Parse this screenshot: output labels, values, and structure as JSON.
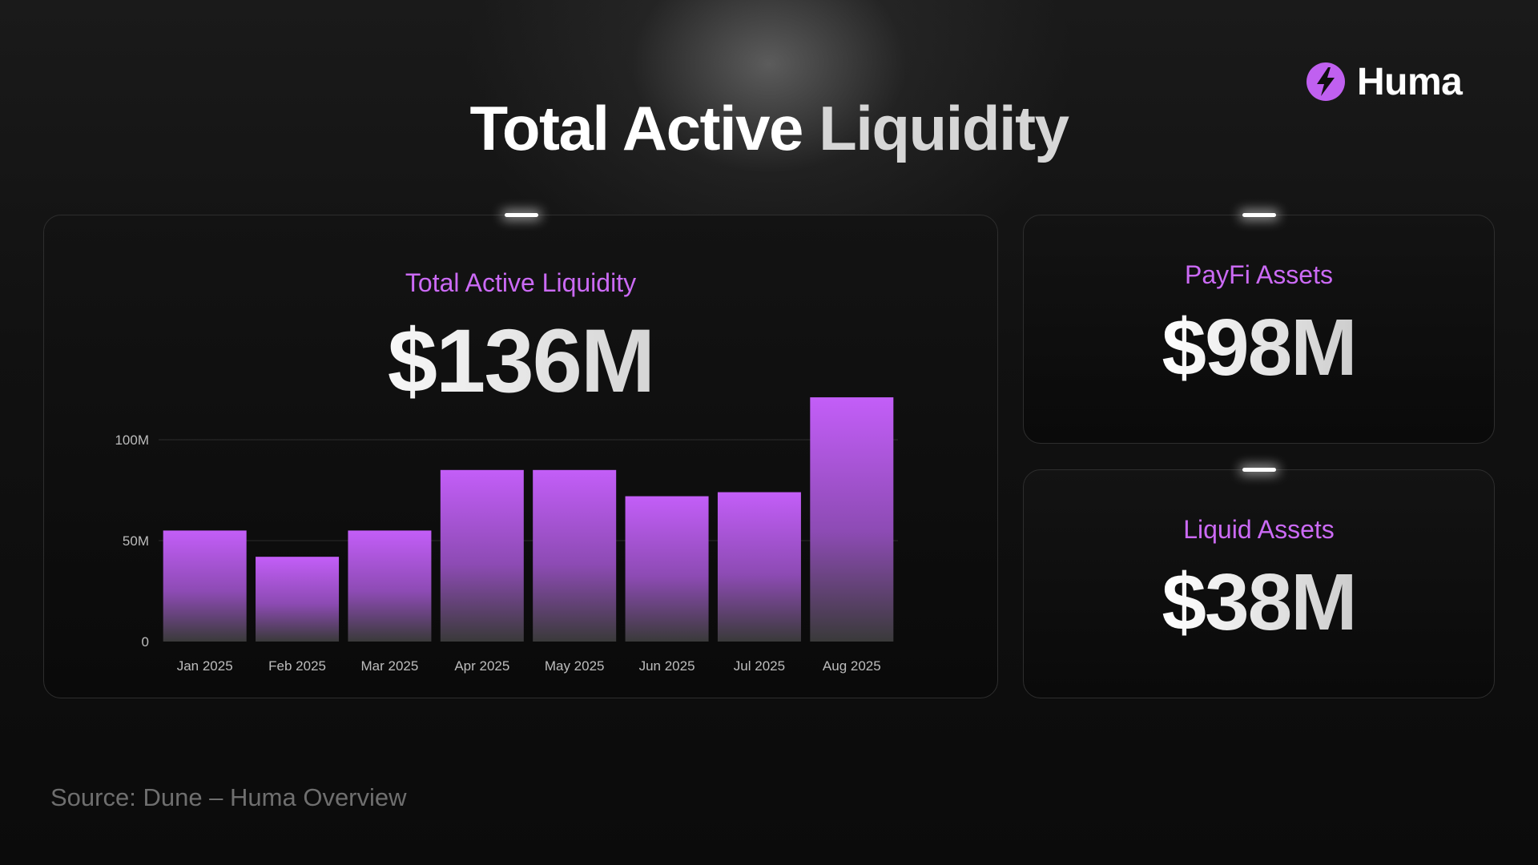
{
  "header": {
    "title_part1": "Total Active",
    "title_part2": "Liquidity"
  },
  "logo": {
    "icon": "huma-bolt-icon",
    "text": "Huma",
    "color": "#c060f0"
  },
  "cards": {
    "total": {
      "label": "Total Active Liquidity",
      "value": "$136M"
    },
    "payfi": {
      "label": "PayFi Assets",
      "value": "$98M"
    },
    "liquid": {
      "label": "Liquid Assets",
      "value": "$38M"
    }
  },
  "chart_data": {
    "type": "bar",
    "categories": [
      "Jan 2025",
      "Feb 2025",
      "Mar 2025",
      "Apr 2025",
      "May 2025",
      "Jun 2025",
      "Jul 2025",
      "Aug 2025"
    ],
    "values": [
      55,
      42,
      55,
      85,
      85,
      72,
      74,
      121
    ],
    "ylim": [
      0,
      100
    ],
    "yticks": [
      {
        "value": 0,
        "label": "0"
      },
      {
        "value": 50,
        "label": "50M"
      },
      {
        "value": 100,
        "label": "100M"
      }
    ],
    "bar_color_top": "#c35ef8",
    "bar_color_bottom": "#3a3a3a",
    "grid": true
  },
  "footer": {
    "source": "Source: Dune – Huma Overview"
  }
}
